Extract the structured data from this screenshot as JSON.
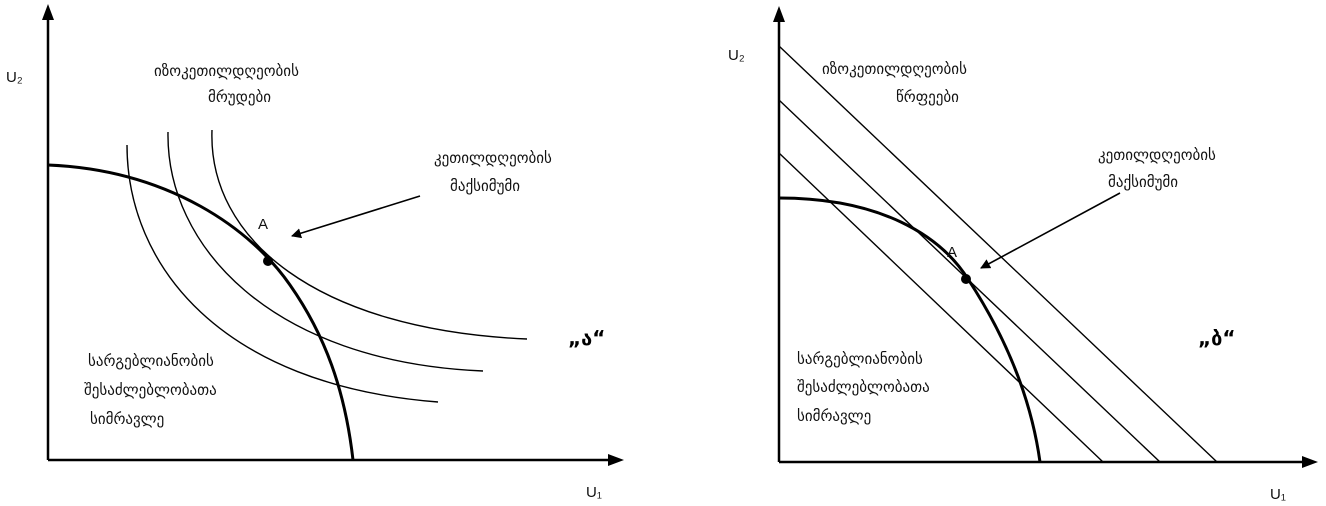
{
  "left_panel": {
    "y_axis_label": "U₂",
    "x_axis_label": "U₁",
    "curves_label": [
      "იზოკეთილდღეობის",
      "მრუდები"
    ],
    "max_label": [
      "კეთილდღეობის",
      "მაქსიმუმი"
    ],
    "point_label": "A",
    "set_label": [
      "სარგებლიანობის",
      "შესაძლებლობათა",
      "სიმრავლე"
    ],
    "panel_tag": "„ა“"
  },
  "right_panel": {
    "y_axis_label": "U₂",
    "x_axis_label": "U₁",
    "curves_label": [
      "იზოკეთილდღეობის",
      "წრფეები"
    ],
    "max_label": [
      "კეთილდღეობის",
      "მაქსიმუმი"
    ],
    "point_label": "A",
    "set_label": [
      "სარგებლიანობის",
      "შესაძლებლობათა",
      "სიმრავლე"
    ],
    "panel_tag": "„ბ“"
  },
  "colors": {
    "line": "#000000"
  }
}
